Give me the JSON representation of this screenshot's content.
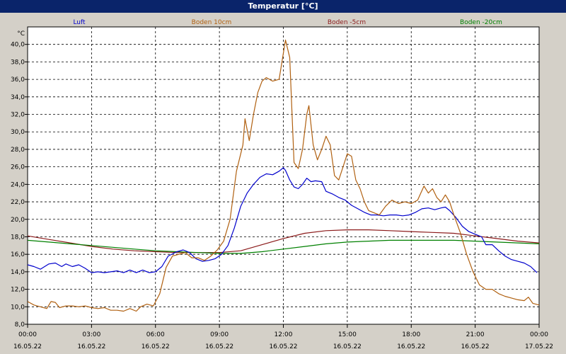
{
  "window": {
    "title": "Temperatur [°C]"
  },
  "chart_data": {
    "type": "line",
    "title": "Temperatur [°C]",
    "ylabel": "°C",
    "xlabel": "",
    "ylim": [
      8,
      42
    ],
    "xlim": [
      0,
      24
    ],
    "grid": true,
    "legend_position": "top",
    "y_ticks": [
      "8,0",
      "10,0",
      "12,0",
      "14,0",
      "16,0",
      "18,0",
      "20,0",
      "22,0",
      "24,0",
      "26,0",
      "28,0",
      "30,0",
      "32,0",
      "34,0",
      "36,0",
      "38,0",
      "40,0"
    ],
    "x_ticks": [
      {
        "time": "00:00",
        "date": "16.05.22"
      },
      {
        "time": "03:00",
        "date": "16.05.22"
      },
      {
        "time": "06:00",
        "date": "16.05.22"
      },
      {
        "time": "09:00",
        "date": "16.05.22"
      },
      {
        "time": "12:00",
        "date": "16.05.22"
      },
      {
        "time": "15:00",
        "date": "16.05.22"
      },
      {
        "time": "18:00",
        "date": "16.05.22"
      },
      {
        "time": "21:00",
        "date": "16.05.22"
      },
      {
        "time": "00:00",
        "date": "17.05.22"
      }
    ],
    "series": [
      {
        "name": "Luft",
        "color": "#0000cc",
        "points": [
          [
            0,
            14.8
          ],
          [
            0.3,
            14.6
          ],
          [
            0.6,
            14.3
          ],
          [
            1.0,
            14.9
          ],
          [
            1.3,
            15.0
          ],
          [
            1.6,
            14.6
          ],
          [
            1.8,
            14.9
          ],
          [
            2.1,
            14.6
          ],
          [
            2.4,
            14.8
          ],
          [
            2.7,
            14.4
          ],
          [
            3.0,
            13.9
          ],
          [
            3.3,
            14.0
          ],
          [
            3.6,
            13.9
          ],
          [
            3.9,
            14.0
          ],
          [
            4.2,
            14.1
          ],
          [
            4.5,
            13.9
          ],
          [
            4.8,
            14.2
          ],
          [
            5.1,
            13.9
          ],
          [
            5.4,
            14.2
          ],
          [
            5.7,
            13.9
          ],
          [
            6.0,
            14.0
          ],
          [
            6.3,
            14.6
          ],
          [
            6.6,
            15.8
          ],
          [
            7.0,
            16.3
          ],
          [
            7.3,
            16.5
          ],
          [
            7.6,
            16.2
          ],
          [
            7.9,
            15.5
          ],
          [
            8.2,
            15.2
          ],
          [
            8.5,
            15.3
          ],
          [
            8.8,
            15.5
          ],
          [
            9.1,
            16.0
          ],
          [
            9.4,
            17.0
          ],
          [
            9.7,
            19.0
          ],
          [
            10.0,
            21.5
          ],
          [
            10.3,
            23.0
          ],
          [
            10.6,
            24.0
          ],
          [
            10.9,
            24.8
          ],
          [
            11.2,
            25.2
          ],
          [
            11.5,
            25.1
          ],
          [
            11.8,
            25.5
          ],
          [
            12.0,
            25.9
          ],
          [
            12.1,
            25.6
          ],
          [
            12.3,
            24.5
          ],
          [
            12.5,
            23.7
          ],
          [
            12.7,
            23.5
          ],
          [
            12.9,
            24.0
          ],
          [
            13.1,
            24.7
          ],
          [
            13.3,
            24.3
          ],
          [
            13.5,
            24.4
          ],
          [
            13.8,
            24.3
          ],
          [
            14.0,
            23.2
          ],
          [
            14.3,
            22.9
          ],
          [
            14.6,
            22.5
          ],
          [
            14.9,
            22.2
          ],
          [
            15.2,
            21.6
          ],
          [
            15.5,
            21.2
          ],
          [
            15.8,
            20.8
          ],
          [
            16.1,
            20.5
          ],
          [
            16.4,
            20.5
          ],
          [
            16.7,
            20.4
          ],
          [
            17.0,
            20.5
          ],
          [
            17.3,
            20.5
          ],
          [
            17.6,
            20.4
          ],
          [
            17.9,
            20.5
          ],
          [
            18.2,
            20.8
          ],
          [
            18.5,
            21.2
          ],
          [
            18.8,
            21.3
          ],
          [
            19.1,
            21.1
          ],
          [
            19.4,
            21.3
          ],
          [
            19.6,
            21.4
          ],
          [
            19.8,
            21.0
          ],
          [
            20.1,
            20.2
          ],
          [
            20.4,
            19.2
          ],
          [
            20.7,
            18.6
          ],
          [
            21.0,
            18.3
          ],
          [
            21.3,
            18.0
          ],
          [
            21.5,
            17.1
          ],
          [
            21.8,
            17.1
          ],
          [
            22.1,
            16.4
          ],
          [
            22.4,
            15.8
          ],
          [
            22.7,
            15.4
          ],
          [
            23.0,
            15.2
          ],
          [
            23.3,
            15.0
          ],
          [
            23.6,
            14.6
          ],
          [
            23.9,
            13.9
          ]
        ]
      },
      {
        "name": "Boden 10cm",
        "color": "#b06010",
        "points": [
          [
            0,
            10.6
          ],
          [
            0.3,
            10.2
          ],
          [
            0.6,
            10.0
          ],
          [
            0.9,
            9.8
          ],
          [
            1.1,
            10.6
          ],
          [
            1.3,
            10.5
          ],
          [
            1.5,
            9.9
          ],
          [
            1.8,
            10.1
          ],
          [
            2.1,
            10.1
          ],
          [
            2.4,
            10.0
          ],
          [
            2.7,
            10.1
          ],
          [
            3.0,
            9.9
          ],
          [
            3.3,
            9.8
          ],
          [
            3.6,
            9.9
          ],
          [
            3.9,
            9.6
          ],
          [
            4.2,
            9.6
          ],
          [
            4.5,
            9.5
          ],
          [
            4.8,
            9.8
          ],
          [
            5.1,
            9.5
          ],
          [
            5.3,
            10.0
          ],
          [
            5.6,
            10.3
          ],
          [
            5.9,
            10.1
          ],
          [
            6.2,
            11.5
          ],
          [
            6.5,
            14.5
          ],
          [
            6.8,
            15.8
          ],
          [
            7.1,
            16.0
          ],
          [
            7.4,
            16.2
          ],
          [
            7.7,
            15.6
          ],
          [
            8.0,
            15.6
          ],
          [
            8.3,
            15.3
          ],
          [
            8.6,
            15.8
          ],
          [
            8.9,
            16.5
          ],
          [
            9.2,
            17.5
          ],
          [
            9.5,
            20.0
          ],
          [
            9.8,
            25.5
          ],
          [
            10.1,
            28.5
          ],
          [
            10.2,
            31.5
          ],
          [
            10.4,
            29.0
          ],
          [
            10.6,
            32.0
          ],
          [
            10.8,
            34.5
          ],
          [
            11.0,
            35.8
          ],
          [
            11.2,
            36.2
          ],
          [
            11.5,
            35.8
          ],
          [
            11.8,
            36.0
          ],
          [
            12.0,
            39.0
          ],
          [
            12.1,
            40.5
          ],
          [
            12.3,
            38.5
          ],
          [
            12.5,
            26.5
          ],
          [
            12.7,
            25.8
          ],
          [
            12.9,
            28.0
          ],
          [
            13.1,
            32.0
          ],
          [
            13.2,
            33.0
          ],
          [
            13.4,
            28.5
          ],
          [
            13.6,
            26.8
          ],
          [
            13.8,
            28.0
          ],
          [
            14.0,
            29.5
          ],
          [
            14.2,
            28.5
          ],
          [
            14.4,
            25.0
          ],
          [
            14.6,
            24.5
          ],
          [
            14.8,
            26.0
          ],
          [
            15.0,
            27.5
          ],
          [
            15.2,
            27.2
          ],
          [
            15.4,
            24.5
          ],
          [
            15.6,
            23.5
          ],
          [
            15.8,
            22.0
          ],
          [
            16.0,
            21.0
          ],
          [
            16.2,
            20.8
          ],
          [
            16.5,
            20.5
          ],
          [
            16.8,
            21.5
          ],
          [
            17.1,
            22.2
          ],
          [
            17.4,
            21.8
          ],
          [
            17.7,
            22.0
          ],
          [
            18.0,
            21.8
          ],
          [
            18.3,
            22.2
          ],
          [
            18.6,
            23.8
          ],
          [
            18.8,
            23.0
          ],
          [
            19.0,
            23.5
          ],
          [
            19.2,
            22.5
          ],
          [
            19.4,
            22.0
          ],
          [
            19.6,
            22.8
          ],
          [
            19.8,
            22.0
          ],
          [
            20.0,
            20.5
          ],
          [
            20.3,
            18.5
          ],
          [
            20.6,
            16.0
          ],
          [
            20.9,
            14.0
          ],
          [
            21.2,
            12.5
          ],
          [
            21.5,
            12.0
          ],
          [
            21.8,
            12.0
          ],
          [
            22.1,
            11.5
          ],
          [
            22.4,
            11.2
          ],
          [
            22.7,
            11.0
          ],
          [
            23.0,
            10.8
          ],
          [
            23.3,
            10.7
          ],
          [
            23.5,
            11.1
          ],
          [
            23.7,
            10.4
          ],
          [
            24.0,
            10.2
          ]
        ]
      },
      {
        "name": "Boden -5cm",
        "color": "#8b1a1a",
        "points": [
          [
            0,
            18.1
          ],
          [
            1,
            17.7
          ],
          [
            2,
            17.3
          ],
          [
            3,
            16.9
          ],
          [
            4,
            16.6
          ],
          [
            5,
            16.4
          ],
          [
            6,
            16.3
          ],
          [
            7,
            16.2
          ],
          [
            8,
            16.2
          ],
          [
            9,
            16.2
          ],
          [
            10,
            16.4
          ],
          [
            11,
            17.1
          ],
          [
            12,
            17.8
          ],
          [
            13,
            18.4
          ],
          [
            14,
            18.7
          ],
          [
            15,
            18.8
          ],
          [
            16,
            18.8
          ],
          [
            17,
            18.7
          ],
          [
            18,
            18.6
          ],
          [
            19,
            18.5
          ],
          [
            20,
            18.4
          ],
          [
            21,
            18.1
          ],
          [
            22,
            17.8
          ],
          [
            23,
            17.5
          ],
          [
            24,
            17.3
          ]
        ]
      },
      {
        "name": "Boden -20cm",
        "color": "#008000",
        "points": [
          [
            0,
            17.6
          ],
          [
            1,
            17.4
          ],
          [
            2,
            17.2
          ],
          [
            3,
            17.0
          ],
          [
            4,
            16.8
          ],
          [
            5,
            16.6
          ],
          [
            6,
            16.4
          ],
          [
            7,
            16.3
          ],
          [
            8,
            16.2
          ],
          [
            9,
            16.1
          ],
          [
            10,
            16.1
          ],
          [
            11,
            16.3
          ],
          [
            12,
            16.6
          ],
          [
            13,
            16.9
          ],
          [
            14,
            17.2
          ],
          [
            15,
            17.4
          ],
          [
            16,
            17.5
          ],
          [
            17,
            17.6
          ],
          [
            18,
            17.6
          ],
          [
            19,
            17.6
          ],
          [
            20,
            17.6
          ],
          [
            21,
            17.5
          ],
          [
            22,
            17.4
          ],
          [
            23,
            17.3
          ],
          [
            24,
            17.2
          ]
        ]
      }
    ]
  }
}
